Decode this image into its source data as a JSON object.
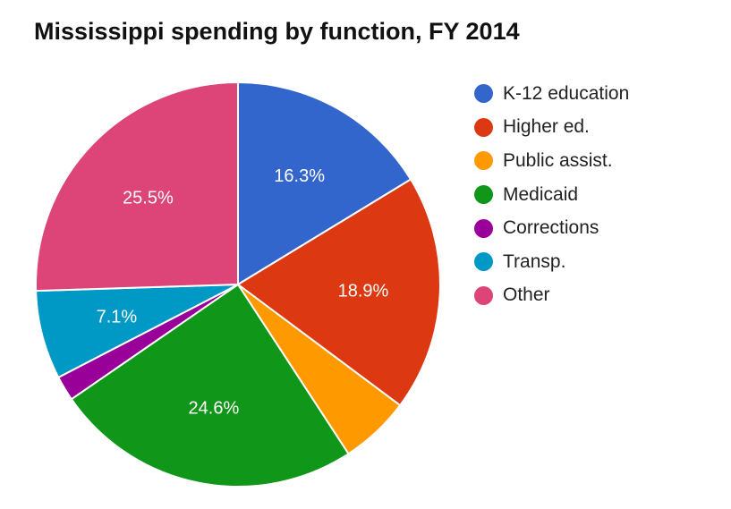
{
  "chart_data": {
    "type": "pie",
    "title": "Mississippi spending by function, FY 2014",
    "slices": [
      {
        "name": "K-12 education",
        "value": 16.3,
        "label": "16.3%",
        "color": "#3366cc"
      },
      {
        "name": "Higher ed.",
        "value": 18.9,
        "label": "18.9%",
        "color": "#dc3912"
      },
      {
        "name": "Public assist.",
        "value": 5.6,
        "label": "",
        "color": "#ff9900"
      },
      {
        "name": "Medicaid",
        "value": 24.6,
        "label": "24.6%",
        "color": "#109618"
      },
      {
        "name": "Corrections",
        "value": 2.0,
        "label": "",
        "color": "#990099"
      },
      {
        "name": "Transp.",
        "value": 7.1,
        "label": "7.1%",
        "color": "#0099c6"
      },
      {
        "name": "Other",
        "value": 25.5,
        "label": "25.5%",
        "color": "#dd4477"
      }
    ],
    "legend_position": "right"
  }
}
